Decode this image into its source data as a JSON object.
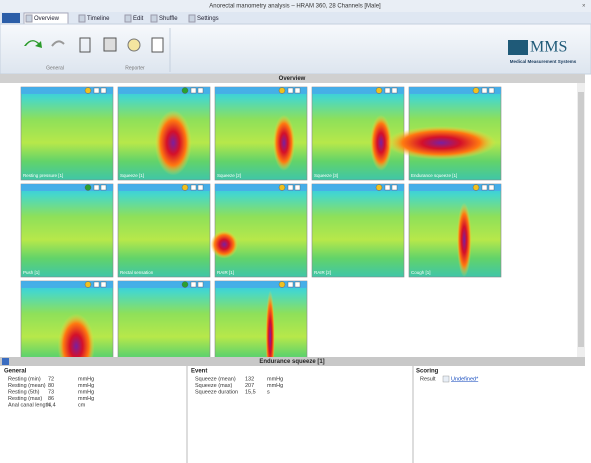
{
  "window": {
    "title": "Anorectal manometry analysis – HRAM 360, 28 Channels [Male]"
  },
  "tabs": [
    "Overview",
    "Timeline",
    "Edit",
    "Shuffle",
    "Settings"
  ],
  "ribbon": {
    "groups": [
      "General",
      "Reporter"
    ]
  },
  "logo": {
    "name": "MMS",
    "tagline": "Medical Measurement Systems"
  },
  "overview": {
    "title": "Overview",
    "thumbnails": [
      "Resting pressure [1]",
      "Squeeze [1]",
      "Squeeze [2]",
      "Squeeze [3]",
      "Endurance squeeze [1]",
      "Push [1]",
      "Rectal sensation",
      "RAIR [1]",
      "RAIR [2]",
      "Cough [1]",
      null,
      null,
      null
    ]
  },
  "detail": {
    "title": "Endurance squeeze [1]",
    "general": {
      "heading": "General",
      "rows": [
        [
          "Resting (min)",
          72,
          "mmHg"
        ],
        [
          "Resting (mean)",
          80,
          "mmHg"
        ],
        [
          "Resting (5th)",
          73,
          "mmHg"
        ],
        [
          "Resting (max)",
          86,
          "mmHg"
        ],
        [
          "Anal canal length",
          "4,4",
          "cm"
        ]
      ]
    },
    "event": {
      "heading": "Event",
      "rows": [
        [
          "Squeeze (mean)",
          132,
          "mmHg"
        ],
        [
          "Squeeze (max)",
          207,
          "mmHg"
        ],
        [
          "Squeeze duration",
          "15,5",
          "s"
        ]
      ]
    },
    "scoring": {
      "heading": "Scoring",
      "rows": [
        [
          "Result",
          "Undefined*"
        ]
      ]
    }
  }
}
